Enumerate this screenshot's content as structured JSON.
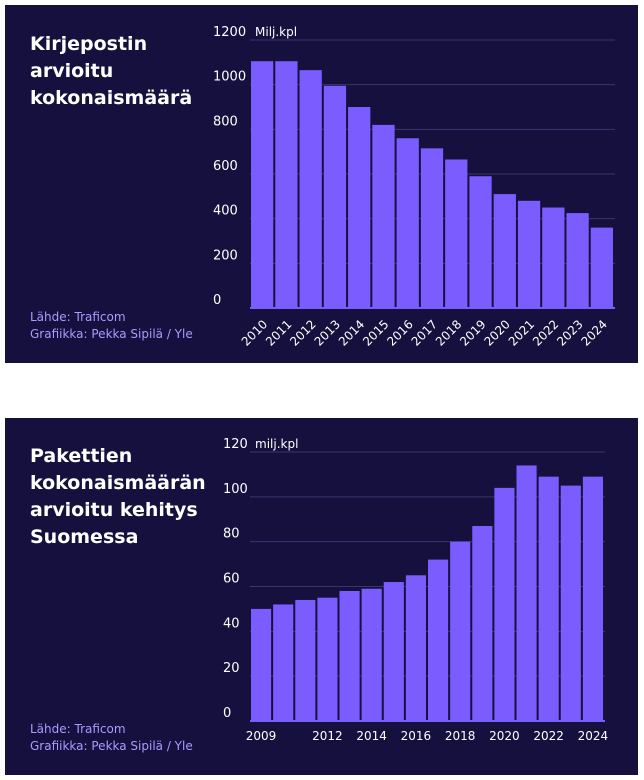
{
  "charts": [
    {
      "title_lines": [
        "Kirjepostin",
        "arvioitu",
        "kokonaismäärä"
      ],
      "source": "Lähde: Traficom",
      "credit": "Grafiikka: Pekka Sipilä / Yle"
    },
    {
      "title_lines": [
        "Pakettien",
        "kokonaismäärän",
        "arvioitu kehitys",
        "Suomessa"
      ],
      "source": "Lähde: Traficom",
      "credit": "Grafiikka: Pekka Sipilä / Yle"
    }
  ],
  "colors": {
    "background": "#15103d",
    "bar": "#7b5cff",
    "text": "#ffffff",
    "source_text": "#a99bff",
    "gridline": "#3a3470"
  },
  "chart_data": [
    {
      "type": "bar",
      "unit_label": "Milj.kpl",
      "categories": [
        "2010",
        "2011",
        "2012",
        "2013",
        "2014",
        "2015",
        "2016",
        "2017",
        "2018",
        "2019",
        "2020",
        "2021",
        "2022",
        "2023",
        "2024"
      ],
      "values": [
        1105,
        1105,
        1065,
        995,
        900,
        820,
        760,
        715,
        665,
        590,
        510,
        480,
        450,
        425,
        360
      ],
      "yticks": [
        0,
        200,
        400,
        600,
        800,
        1000,
        1200
      ],
      "ylim": [
        0,
        1200
      ],
      "xtick_labels": [
        "2010",
        "2011",
        "2012",
        "2013",
        "2014",
        "2015",
        "2016",
        "2017",
        "2018",
        "2019",
        "2020",
        "2021",
        "2022",
        "2023",
        "2024"
      ],
      "xtick_rotation": -45,
      "grid": true
    },
    {
      "type": "bar",
      "unit_label": "milj.kpl",
      "categories": [
        "2009",
        "2010",
        "2011",
        "2012",
        "2013",
        "2014",
        "2015",
        "2016",
        "2017",
        "2018",
        "2019",
        "2020",
        "2021",
        "2022",
        "2023",
        "2024"
      ],
      "values": [
        50,
        52,
        54,
        55,
        58,
        59,
        62,
        65,
        72,
        80,
        87,
        104,
        114,
        109,
        105,
        109
      ],
      "yticks": [
        0,
        20,
        40,
        60,
        80,
        100,
        120
      ],
      "ylim": [
        0,
        120
      ],
      "xtick_labels": [
        "2009",
        "2012",
        "2014",
        "2016",
        "2018",
        "2020",
        "2022",
        "2024"
      ],
      "xtick_rotation": 0,
      "grid": true
    }
  ]
}
